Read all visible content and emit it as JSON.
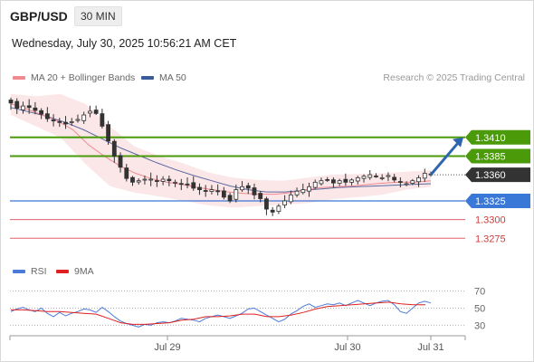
{
  "header": {
    "symbol": "GBP/USD",
    "timeframe": "30 MIN",
    "datetime": "Wednesday, July 30, 2025 10:56:21 AM CET"
  },
  "legend": {
    "ma20_bollinger": "MA 20 + Bollinger Bands",
    "ma50": "MA 50",
    "copyright": "Research © 2025 Trading Central",
    "rsi": "RSI",
    "rsi_ma": "9MA"
  },
  "colors": {
    "resistance": "#4a9a0a",
    "support_blue": "#3a78d8",
    "support_red": "#e0606a",
    "current_price": "#333333",
    "bollinger_fill": "#fbe3e5",
    "ma20": "#f08a90",
    "ma50": "#5a6aa0",
    "candle_up": "#ffffff",
    "candle_down": "#333333",
    "arrow": "#2e65b0",
    "rsi_line": "#4a7bd8",
    "rsi_ma_line": "#e02020"
  },
  "chart_data": [
    {
      "type": "candlestick",
      "title": "GBP/USD 30 MIN",
      "ylim": [
        1.3262,
        1.348
      ],
      "x_tick_labels": [
        "Jul 29",
        "Jul 30",
        "Jul 31"
      ],
      "price_levels": [
        {
          "value": 1.341,
          "label": "1.3410",
          "kind": "resistance"
        },
        {
          "value": 1.3385,
          "label": "1.3385",
          "kind": "resistance"
        },
        {
          "value": 1.336,
          "label": "1.3360",
          "kind": "current"
        },
        {
          "value": 1.3325,
          "label": "1.3325",
          "kind": "support"
        },
        {
          "value": 1.33,
          "label": "1.3300",
          "kind": "support"
        },
        {
          "value": 1.3275,
          "label": "1.3275",
          "kind": "support"
        }
      ],
      "current_price": 1.336,
      "forecast_arrow": {
        "from": 1.336,
        "to": 1.341
      },
      "close_path": [
        1.3456,
        1.3449,
        1.3452,
        1.345,
        1.3446,
        1.3441,
        1.3435,
        1.3432,
        1.343,
        1.3428,
        1.3431,
        1.3434,
        1.344,
        1.3445,
        1.3442,
        1.3425,
        1.3405,
        1.3385,
        1.337,
        1.3355,
        1.335,
        1.3352,
        1.3354,
        1.3354,
        1.3352,
        1.3354,
        1.3352,
        1.335,
        1.3348,
        1.3347,
        1.3342,
        1.334,
        1.3338,
        1.334,
        1.3338,
        1.333,
        1.3325,
        1.334,
        1.3344,
        1.3342,
        1.3333,
        1.3328,
        1.3314,
        1.331,
        1.3318,
        1.3325,
        1.3333,
        1.3338,
        1.334,
        1.3344,
        1.335,
        1.3352,
        1.3353,
        1.3349,
        1.3352,
        1.335,
        1.3353,
        1.3356,
        1.3358,
        1.336,
        1.3358,
        1.3356,
        1.3359,
        1.3353,
        1.335,
        1.3348,
        1.3352,
        1.3356,
        1.3362,
        1.336
      ],
      "ma20": [
        1.3455,
        1.3448,
        1.344,
        1.3432,
        1.342,
        1.34,
        1.3385,
        1.3372,
        1.3362,
        1.3355,
        1.335,
        1.3347,
        1.3343,
        1.334,
        1.3337,
        1.3335,
        1.3334,
        1.3334,
        1.3336,
        1.334,
        1.3343,
        1.3344,
        1.3345,
        1.3347,
        1.3349,
        1.335,
        1.335,
        1.3352
      ],
      "ma50": [
        1.345,
        1.3444,
        1.3438,
        1.343,
        1.342,
        1.3408,
        1.3396,
        1.3386,
        1.3376,
        1.3367,
        1.3359,
        1.3352,
        1.3345,
        1.334,
        1.3337,
        1.3337,
        1.3339,
        1.3341,
        1.3343,
        1.3344,
        1.3345,
        1.3346,
        1.3347,
        1.3348
      ],
      "bollinger_upper": [
        1.3468,
        1.3465,
        1.3468,
        1.3455,
        1.3425,
        1.3398,
        1.3385,
        1.3375,
        1.3363,
        1.3356,
        1.3353,
        1.3352,
        1.3356,
        1.336,
        1.3361,
        1.3362,
        1.3364,
        1.3366
      ],
      "bollinger_lower": [
        1.344,
        1.3425,
        1.341,
        1.3375,
        1.3345,
        1.3336,
        1.3331,
        1.3325,
        1.3319,
        1.3316,
        1.3318,
        1.332,
        1.3322,
        1.3327,
        1.333,
        1.3333,
        1.334,
        1.3344
      ]
    },
    {
      "type": "line",
      "title": "RSI",
      "ylim": [
        23,
        77
      ],
      "y_tick_labels": [
        "70",
        "50",
        "30"
      ],
      "series": [
        {
          "name": "RSI",
          "values": [
            46,
            49,
            51,
            48,
            46,
            50,
            44,
            40,
            45,
            41,
            44,
            46,
            49,
            48,
            45,
            51,
            46,
            40,
            35,
            32,
            30,
            28,
            31,
            30,
            33,
            34,
            33,
            35,
            38,
            37,
            36,
            34,
            38,
            40,
            42,
            40,
            38,
            41,
            44,
            49,
            50,
            46,
            42,
            38,
            34,
            37,
            43,
            47,
            52,
            55,
            51,
            53,
            55,
            54,
            56,
            53,
            56,
            59,
            56,
            53,
            56,
            58,
            59,
            54,
            46,
            44,
            50,
            56,
            58,
            56
          ]
        },
        {
          "name": "9MA",
          "values": [
            48,
            48,
            47,
            46,
            46,
            45,
            44,
            43,
            38,
            33,
            31,
            31,
            32,
            33,
            36,
            37,
            40,
            40,
            41,
            43,
            43,
            40,
            40,
            42,
            45,
            49,
            52,
            53,
            54,
            55,
            56,
            57,
            55,
            54,
            54
          ]
        }
      ]
    }
  ]
}
